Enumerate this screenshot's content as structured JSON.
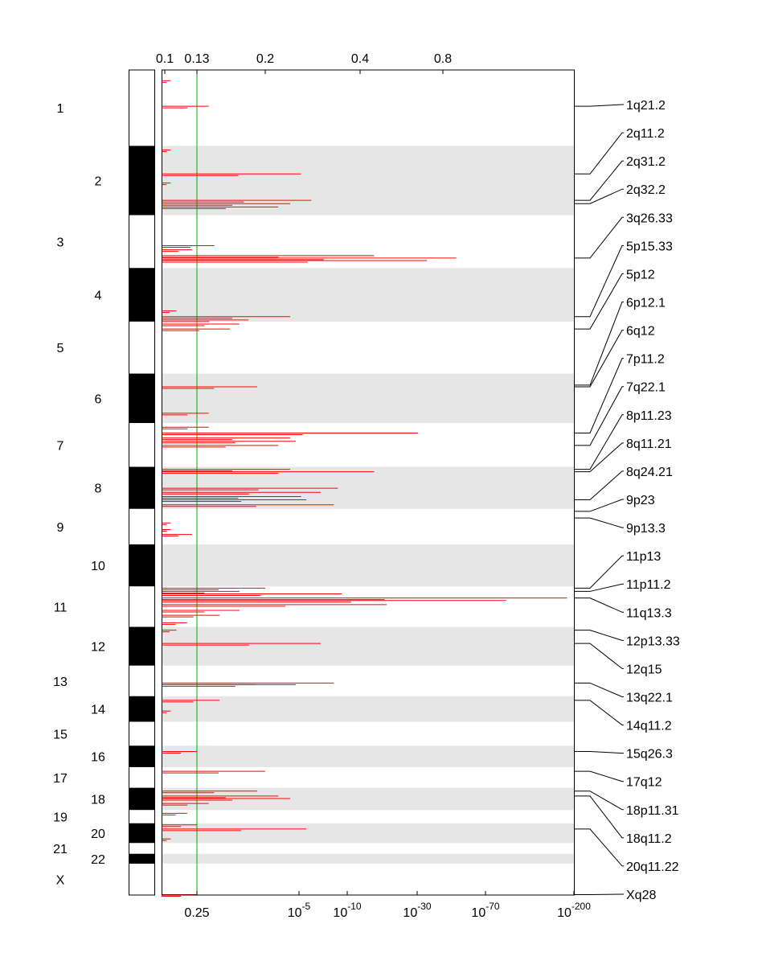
{
  "chart_data": {
    "type": "genome-significance-plot",
    "title": "",
    "top_axis": {
      "label": "",
      "ticks": [
        "0.1",
        "0.13",
        "0.2",
        "0.4",
        "0.8"
      ]
    },
    "bottom_axis": {
      "label": "",
      "ticks": [
        {
          "base": "",
          "exp": "",
          "text": "0.25",
          "x": 0.25
        },
        {
          "base": "10",
          "exp": "-5",
          "text": "",
          "x": 5
        },
        {
          "base": "10",
          "exp": "-10",
          "text": "",
          "x": 10
        },
        {
          "base": "10",
          "exp": "-30",
          "text": "",
          "x": 30
        },
        {
          "base": "10",
          "exp": "-70",
          "text": "",
          "x": 70
        },
        {
          "base": "10",
          "exp": "-200",
          "text": "",
          "x": 200
        }
      ]
    },
    "threshold": {
      "q_value": 0.25,
      "g_score": 0.13,
      "color": "#00aa00"
    },
    "colors": {
      "signal": "#ff0000",
      "band_shade": "#e6e6e6",
      "ideogram_dark": "#000000",
      "ideogram_light": "#ffffff"
    },
    "chromosomes": [
      {
        "label": "1",
        "start": 0.0,
        "end": 0.092
      },
      {
        "label": "2",
        "start": 0.092,
        "end": 0.176
      },
      {
        "label": "3",
        "start": 0.176,
        "end": 0.24
      },
      {
        "label": "4",
        "start": 0.24,
        "end": 0.305
      },
      {
        "label": "5",
        "start": 0.305,
        "end": 0.368
      },
      {
        "label": "6",
        "start": 0.368,
        "end": 0.428
      },
      {
        "label": "7",
        "start": 0.428,
        "end": 0.481
      },
      {
        "label": "8",
        "start": 0.481,
        "end": 0.532
      },
      {
        "label": "9",
        "start": 0.532,
        "end": 0.575
      },
      {
        "label": "10",
        "start": 0.575,
        "end": 0.626
      },
      {
        "label": "11",
        "start": 0.626,
        "end": 0.675
      },
      {
        "label": "12",
        "start": 0.675,
        "end": 0.722
      },
      {
        "label": "13",
        "start": 0.722,
        "end": 0.759
      },
      {
        "label": "14",
        "start": 0.759,
        "end": 0.79
      },
      {
        "label": "15",
        "start": 0.79,
        "end": 0.819
      },
      {
        "label": "16",
        "start": 0.819,
        "end": 0.845
      },
      {
        "label": "17",
        "start": 0.845,
        "end": 0.87
      },
      {
        "label": "18",
        "start": 0.87,
        "end": 0.897
      },
      {
        "label": "19",
        "start": 0.897,
        "end": 0.913
      },
      {
        "label": "20",
        "start": 0.913,
        "end": 0.937
      },
      {
        "label": "21",
        "start": 0.937,
        "end": 0.95
      },
      {
        "label": "22",
        "start": 0.95,
        "end": 0.962
      },
      {
        "label": "X",
        "start": 0.962,
        "end": 1.0
      }
    ],
    "peaks": [
      {
        "g": 0.105,
        "pos": 0.013
      },
      {
        "g": 0.14,
        "pos": 0.044
      },
      {
        "g": 0.105,
        "pos": 0.097
      },
      {
        "g": 0.26,
        "pos": 0.126
      },
      {
        "g": 0.105,
        "pos": 0.137
      },
      {
        "g": 0.28,
        "pos": 0.158
      },
      {
        "g": 0.24,
        "pos": 0.162
      },
      {
        "g": 0.22,
        "pos": 0.166
      },
      {
        "g": 0.125,
        "pos": 0.218
      },
      {
        "g": 0.145,
        "pos": 0.213
      },
      {
        "g": 0.45,
        "pos": 0.225
      },
      {
        "g": 0.95,
        "pos": 0.228
      },
      {
        "g": 0.7,
        "pos": 0.231
      },
      {
        "g": 0.11,
        "pos": 0.292
      },
      {
        "g": 0.24,
        "pos": 0.299
      },
      {
        "g": 0.18,
        "pos": 0.303
      },
      {
        "g": 0.17,
        "pos": 0.308
      },
      {
        "g": 0.16,
        "pos": 0.314
      },
      {
        "g": 0.19,
        "pos": 0.384
      },
      {
        "g": 0.14,
        "pos": 0.416
      },
      {
        "g": 0.14,
        "pos": 0.433
      },
      {
        "g": 0.65,
        "pos": 0.44
      },
      {
        "g": 0.24,
        "pos": 0.446
      },
      {
        "g": 0.25,
        "pos": 0.45
      },
      {
        "g": 0.22,
        "pos": 0.455
      },
      {
        "g": 0.24,
        "pos": 0.484
      },
      {
        "g": 0.45,
        "pos": 0.487
      },
      {
        "g": 0.34,
        "pos": 0.507
      },
      {
        "g": 0.3,
        "pos": 0.512
      },
      {
        "g": 0.26,
        "pos": 0.517
      },
      {
        "g": 0.27,
        "pos": 0.521
      },
      {
        "g": 0.33,
        "pos": 0.527
      },
      {
        "g": 0.105,
        "pos": 0.549
      },
      {
        "g": 0.105,
        "pos": 0.557
      },
      {
        "g": 0.125,
        "pos": 0.563
      },
      {
        "g": 0.2,
        "pos": 0.628
      },
      {
        "g": 0.17,
        "pos": 0.632
      },
      {
        "g": 0.35,
        "pos": 0.635
      },
      {
        "g": 4.5,
        "pos": 0.64
      },
      {
        "g": 1.8,
        "pos": 0.643
      },
      {
        "g": 0.5,
        "pos": 0.648
      },
      {
        "g": 0.17,
        "pos": 0.655
      },
      {
        "g": 0.15,
        "pos": 0.661
      },
      {
        "g": 0.12,
        "pos": 0.67
      },
      {
        "g": 0.11,
        "pos": 0.679
      },
      {
        "g": 0.3,
        "pos": 0.695
      },
      {
        "g": 0.33,
        "pos": 0.743
      },
      {
        "g": 0.25,
        "pos": 0.745
      },
      {
        "g": 0.15,
        "pos": 0.764
      },
      {
        "g": 0.105,
        "pos": 0.777
      },
      {
        "g": 0.13,
        "pos": 0.826
      },
      {
        "g": 0.2,
        "pos": 0.85
      },
      {
        "g": 0.19,
        "pos": 0.874
      },
      {
        "g": 0.22,
        "pos": 0.88
      },
      {
        "g": 0.24,
        "pos": 0.883
      },
      {
        "g": 0.14,
        "pos": 0.889
      },
      {
        "g": 0.12,
        "pos": 0.901
      },
      {
        "g": 0.13,
        "pos": 0.915
      },
      {
        "g": 0.27,
        "pos": 0.92
      },
      {
        "g": 0.105,
        "pos": 0.932
      },
      {
        "g": 0.13,
        "pos": 0.9995
      }
    ],
    "peak_labels": [
      {
        "text": "1q21.2",
        "pos": 0.044
      },
      {
        "text": "2q11.2",
        "pos": 0.126
      },
      {
        "text": "2q31.2",
        "pos": 0.158
      },
      {
        "text": "2q32.2",
        "pos": 0.162
      },
      {
        "text": "3q26.33",
        "pos": 0.228
      },
      {
        "text": "5p15.33",
        "pos": 0.299
      },
      {
        "text": "5p12",
        "pos": 0.314
      },
      {
        "text": "6p12.1",
        "pos": 0.382
      },
      {
        "text": "6q12",
        "pos": 0.384
      },
      {
        "text": "7p11.2",
        "pos": 0.44
      },
      {
        "text": "7q22.1",
        "pos": 0.455
      },
      {
        "text": "8p11.23",
        "pos": 0.484
      },
      {
        "text": "8q11.21",
        "pos": 0.487
      },
      {
        "text": "8q24.21",
        "pos": 0.521
      },
      {
        "text": "9p23",
        "pos": 0.535
      },
      {
        "text": "9p13.3",
        "pos": 0.543
      },
      {
        "text": "11p13",
        "pos": 0.628
      },
      {
        "text": "11p11.2",
        "pos": 0.632
      },
      {
        "text": "11q13.3",
        "pos": 0.64
      },
      {
        "text": "12p13.33",
        "pos": 0.679
      },
      {
        "text": "12q15",
        "pos": 0.695
      },
      {
        "text": "13q22.1",
        "pos": 0.743
      },
      {
        "text": "14q11.2",
        "pos": 0.764
      },
      {
        "text": "15q26.3",
        "pos": 0.826
      },
      {
        "text": "17q12",
        "pos": 0.85
      },
      {
        "text": "18p11.31",
        "pos": 0.874
      },
      {
        "text": "18q11.2",
        "pos": 0.88
      },
      {
        "text": "20q11.22",
        "pos": 0.92
      },
      {
        "text": "Xq28",
        "pos": 0.9995
      }
    ]
  }
}
